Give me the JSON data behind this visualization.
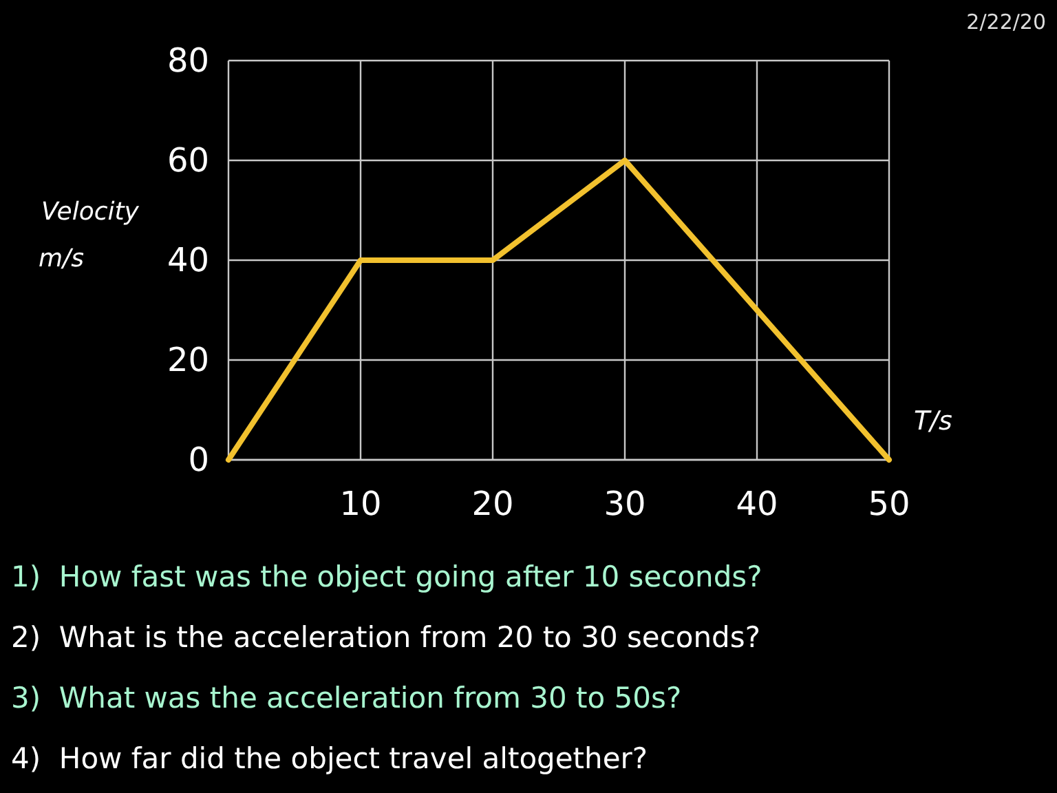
{
  "chart_data": {
    "type": "line",
    "x": [
      0,
      10,
      20,
      30,
      50
    ],
    "series": [
      {
        "color": "#f2c12e",
        "values": [
          0,
          40,
          40,
          60,
          0
        ]
      }
    ],
    "xlim": [
      0,
      50
    ],
    "ylim": [
      0,
      80
    ],
    "xticks": [
      10,
      20,
      30,
      40,
      50
    ],
    "yticks": [
      0,
      20,
      40,
      60,
      80
    ],
    "xlabel": "T/s",
    "ylabel": "Velocity m/s",
    "grid": true,
    "annotations": [
      "2/22/20",
      "1)  How fast was the object going after 10 seconds?",
      "2)  What is the acceleration from 20 to 30 seconds?",
      "3)  What was the acceleration from 30 to 50s?",
      "4)  How far did the object travel altogether?"
    ]
  }
}
